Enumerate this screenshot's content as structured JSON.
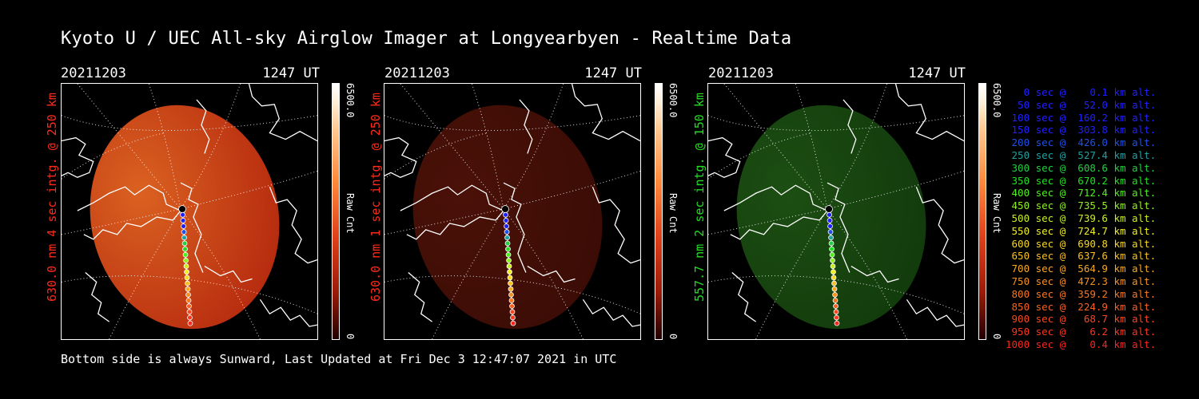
{
  "title": "Kyoto U / UEC All-sky Airglow Imager at Longyearbyen - Realtime Data",
  "footer": "Bottom side is always Sunward, Last Updated at Fri Dec  3 12:47:07 2021 in UTC",
  "panels": [
    {
      "date": "20211203",
      "time": "1247 UT",
      "ylabel": "630.0 nm 4 sec intg. @ 250 km",
      "label_color": "#ff2a1a",
      "colorbar_max": "6500.0",
      "colorbar_min": "0",
      "colorbar_label": "Raw Cnt",
      "image_fill": "#c42c0f",
      "image_glow": "#ee6a24",
      "image_opacity": 0.92
    },
    {
      "date": "20211203",
      "time": "1247 UT",
      "ylabel": "630.0 nm 1 sec intg. @ 250 km",
      "label_color": "#ff2a1a",
      "colorbar_max": "6500.0",
      "colorbar_min": "0",
      "colorbar_label": "Raw Cnt",
      "image_fill": "#3a0c05",
      "image_glow": "#4a1108",
      "image_opacity": 1
    },
    {
      "date": "20211203",
      "time": "1247 UT",
      "ylabel": "557.7 nm 2 sec intg. @ 150 km",
      "label_color": "#22dd22",
      "colorbar_max": "6500.0",
      "colorbar_min": "0",
      "colorbar_label": "Raw Cnt",
      "image_fill": "#123a0c",
      "image_glow": "#1c4e12",
      "image_opacity": 1
    }
  ],
  "trajectory": [
    {
      "text": "   0 sec @    0.1 km alt.",
      "color": "#2020ff"
    },
    {
      "text": "  50 sec @   52.0 km alt.",
      "color": "#2020ff"
    },
    {
      "text": " 100 sec @  160.2 km alt.",
      "color": "#2020ff"
    },
    {
      "text": " 150 sec @  303.8 km alt.",
      "color": "#2020ff"
    },
    {
      "text": " 200 sec @  426.0 km alt.",
      "color": "#2050e8"
    },
    {
      "text": " 250 sec @  527.4 km alt.",
      "color": "#20a0a0"
    },
    {
      "text": " 300 sec @  608.6 km alt.",
      "color": "#20d040"
    },
    {
      "text": " 350 sec @  670.2 km alt.",
      "color": "#20e020"
    },
    {
      "text": " 400 sec @  712.4 km alt.",
      "color": "#50f020"
    },
    {
      "text": " 450 sec @  735.5 km alt.",
      "color": "#90f020"
    },
    {
      "text": " 500 sec @  739.6 km alt.",
      "color": "#c8f020"
    },
    {
      "text": " 550 sec @  724.7 km alt.",
      "color": "#f0f020"
    },
    {
      "text": " 600 sec @  690.8 km alt.",
      "color": "#f8d820"
    },
    {
      "text": " 650 sec @  637.6 km alt.",
      "color": "#f8c020"
    },
    {
      "text": " 700 sec @  564.9 km alt.",
      "color": "#f8a820"
    },
    {
      "text": " 750 sec @  472.3 km alt.",
      "color": "#f89020"
    },
    {
      "text": " 800 sec @  359.2 km alt.",
      "color": "#f87820"
    },
    {
      "text": " 850 sec @  224.9 km alt.",
      "color": "#f86020"
    },
    {
      "text": " 900 sec @   68.7 km alt.",
      "color": "#f84820"
    },
    {
      "text": " 950 sec @    6.2 km alt.",
      "color": "#f83820"
    },
    {
      "text": "1000 sec @    0.4 km alt.",
      "color": "#f82820"
    }
  ]
}
